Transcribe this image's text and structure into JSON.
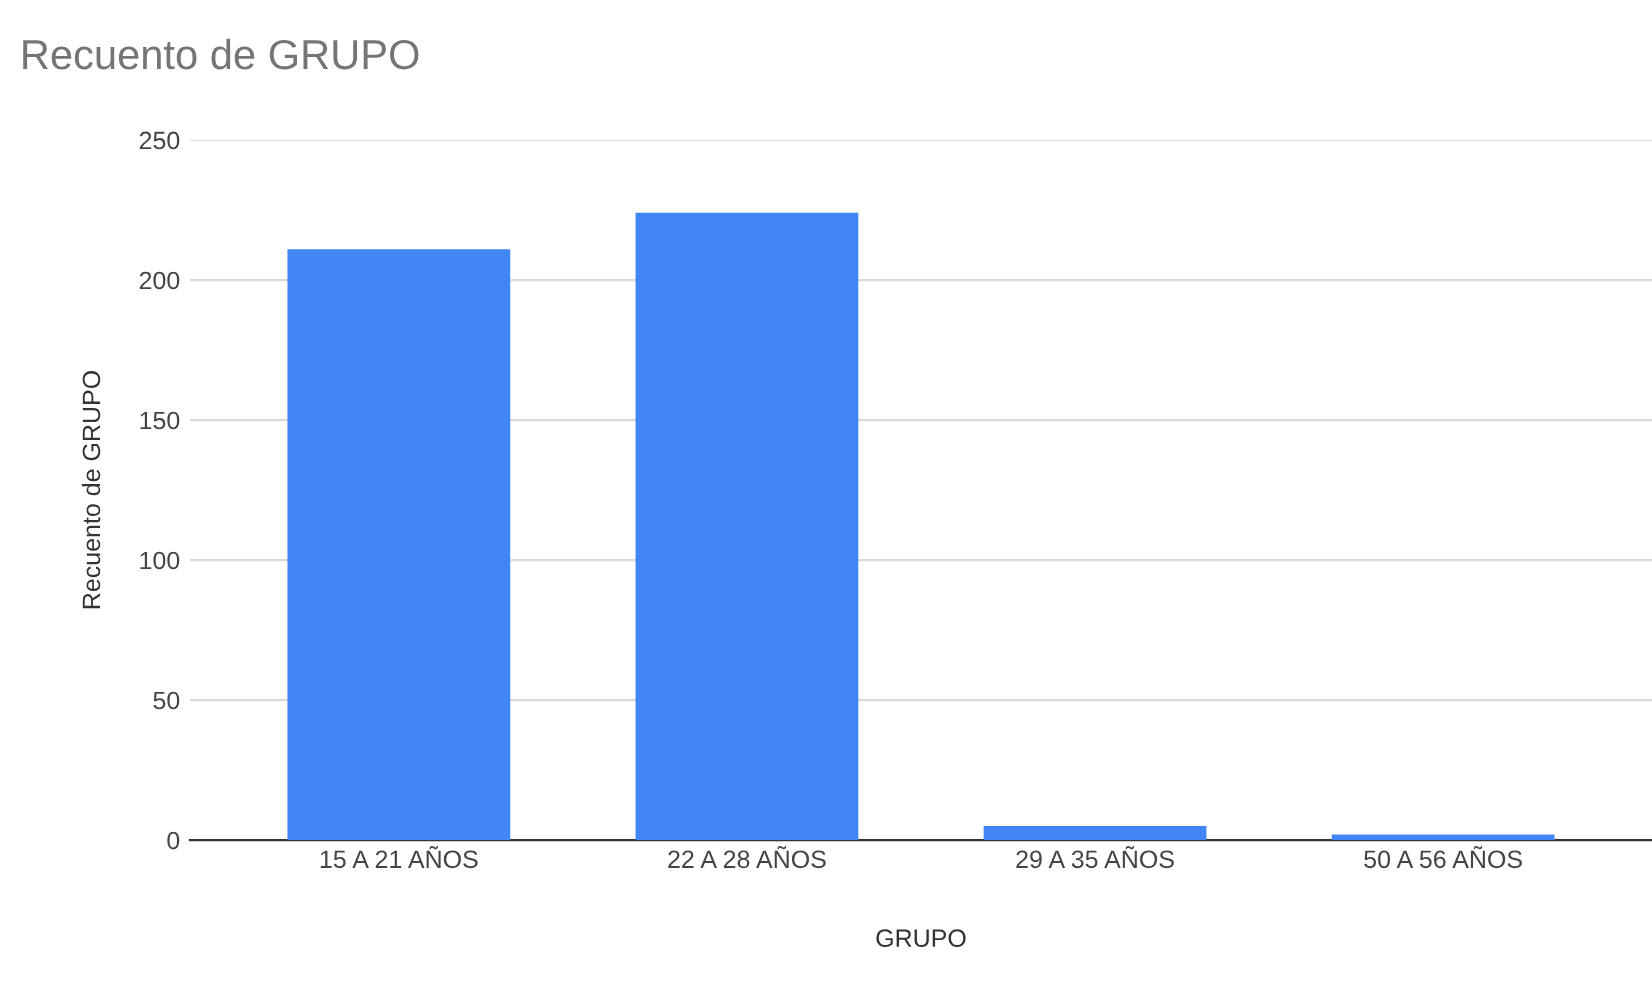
{
  "chart_data": {
    "type": "bar",
    "title": "Recuento de GRUPO",
    "xlabel": "GRUPO",
    "ylabel": "Recuento de GRUPO",
    "categories": [
      "15 A 21 AÑOS",
      "22 A 28 AÑOS",
      "29 A 35 AÑOS",
      "50 A 56 AÑOS"
    ],
    "values": [
      211,
      224,
      5,
      2
    ],
    "color": "#4285f4",
    "ylim": [
      0,
      250
    ],
    "yticks": [
      0,
      50,
      100,
      150,
      200,
      250
    ],
    "grid": "y",
    "legend": false
  }
}
